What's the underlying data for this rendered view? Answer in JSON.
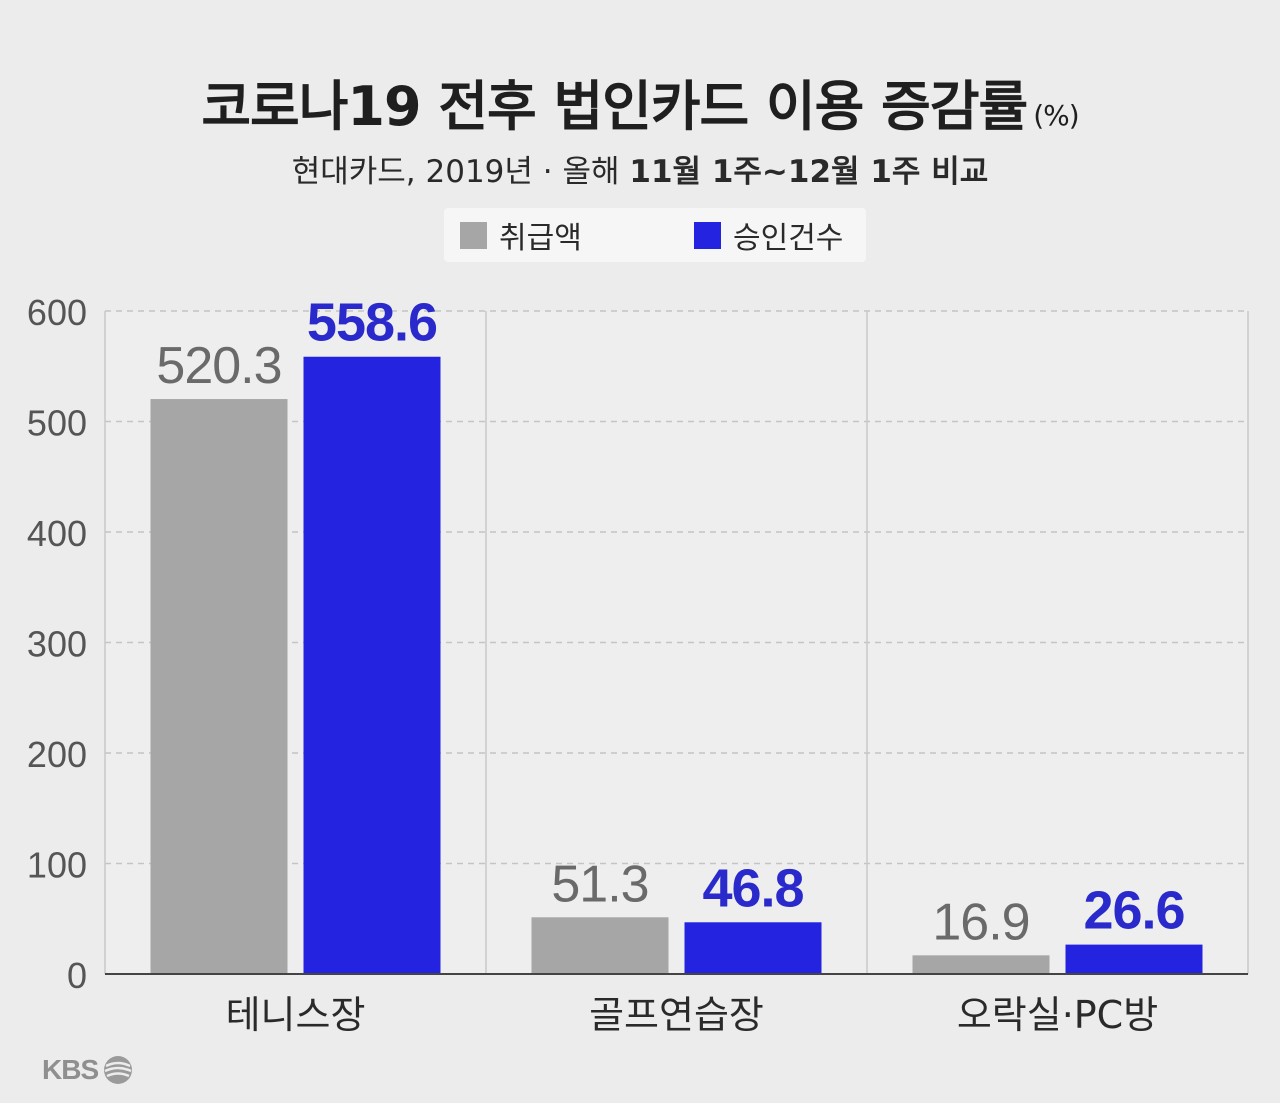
{
  "header": {
    "title": "코로나19 전후 법인카드 이용 증감률",
    "unit": "(%)",
    "subtitle_prefix": "현대카드, 2019년 · 올해 ",
    "subtitle_emphasis": "11월 1주~12월 1주 비교"
  },
  "logo": {
    "text": "KBS",
    "icon": "kbs-globe-icon"
  },
  "colors": {
    "background": "#ececec",
    "series1": "#a6a6a6",
    "series2": "#2424e0",
    "label2": "#2a2acc"
  },
  "chart_data": {
    "type": "bar",
    "title": "코로나19 전후 법인카드 이용 증감률",
    "unit": "(%)",
    "categories": [
      "테니스장",
      "골프연습장",
      "오락실·PC방"
    ],
    "series": [
      {
        "name": "취급액",
        "color": "#a6a6a6",
        "values": [
          520.3,
          51.3,
          16.9
        ]
      },
      {
        "name": "승인건수",
        "color": "#2424e0",
        "values": [
          558.6,
          46.8,
          26.6
        ]
      }
    ],
    "yticks": [
      "0",
      "100",
      "200",
      "300",
      "400",
      "500",
      "600"
    ],
    "ylim": [
      0,
      600
    ],
    "grid": true,
    "legend": "top-center"
  }
}
